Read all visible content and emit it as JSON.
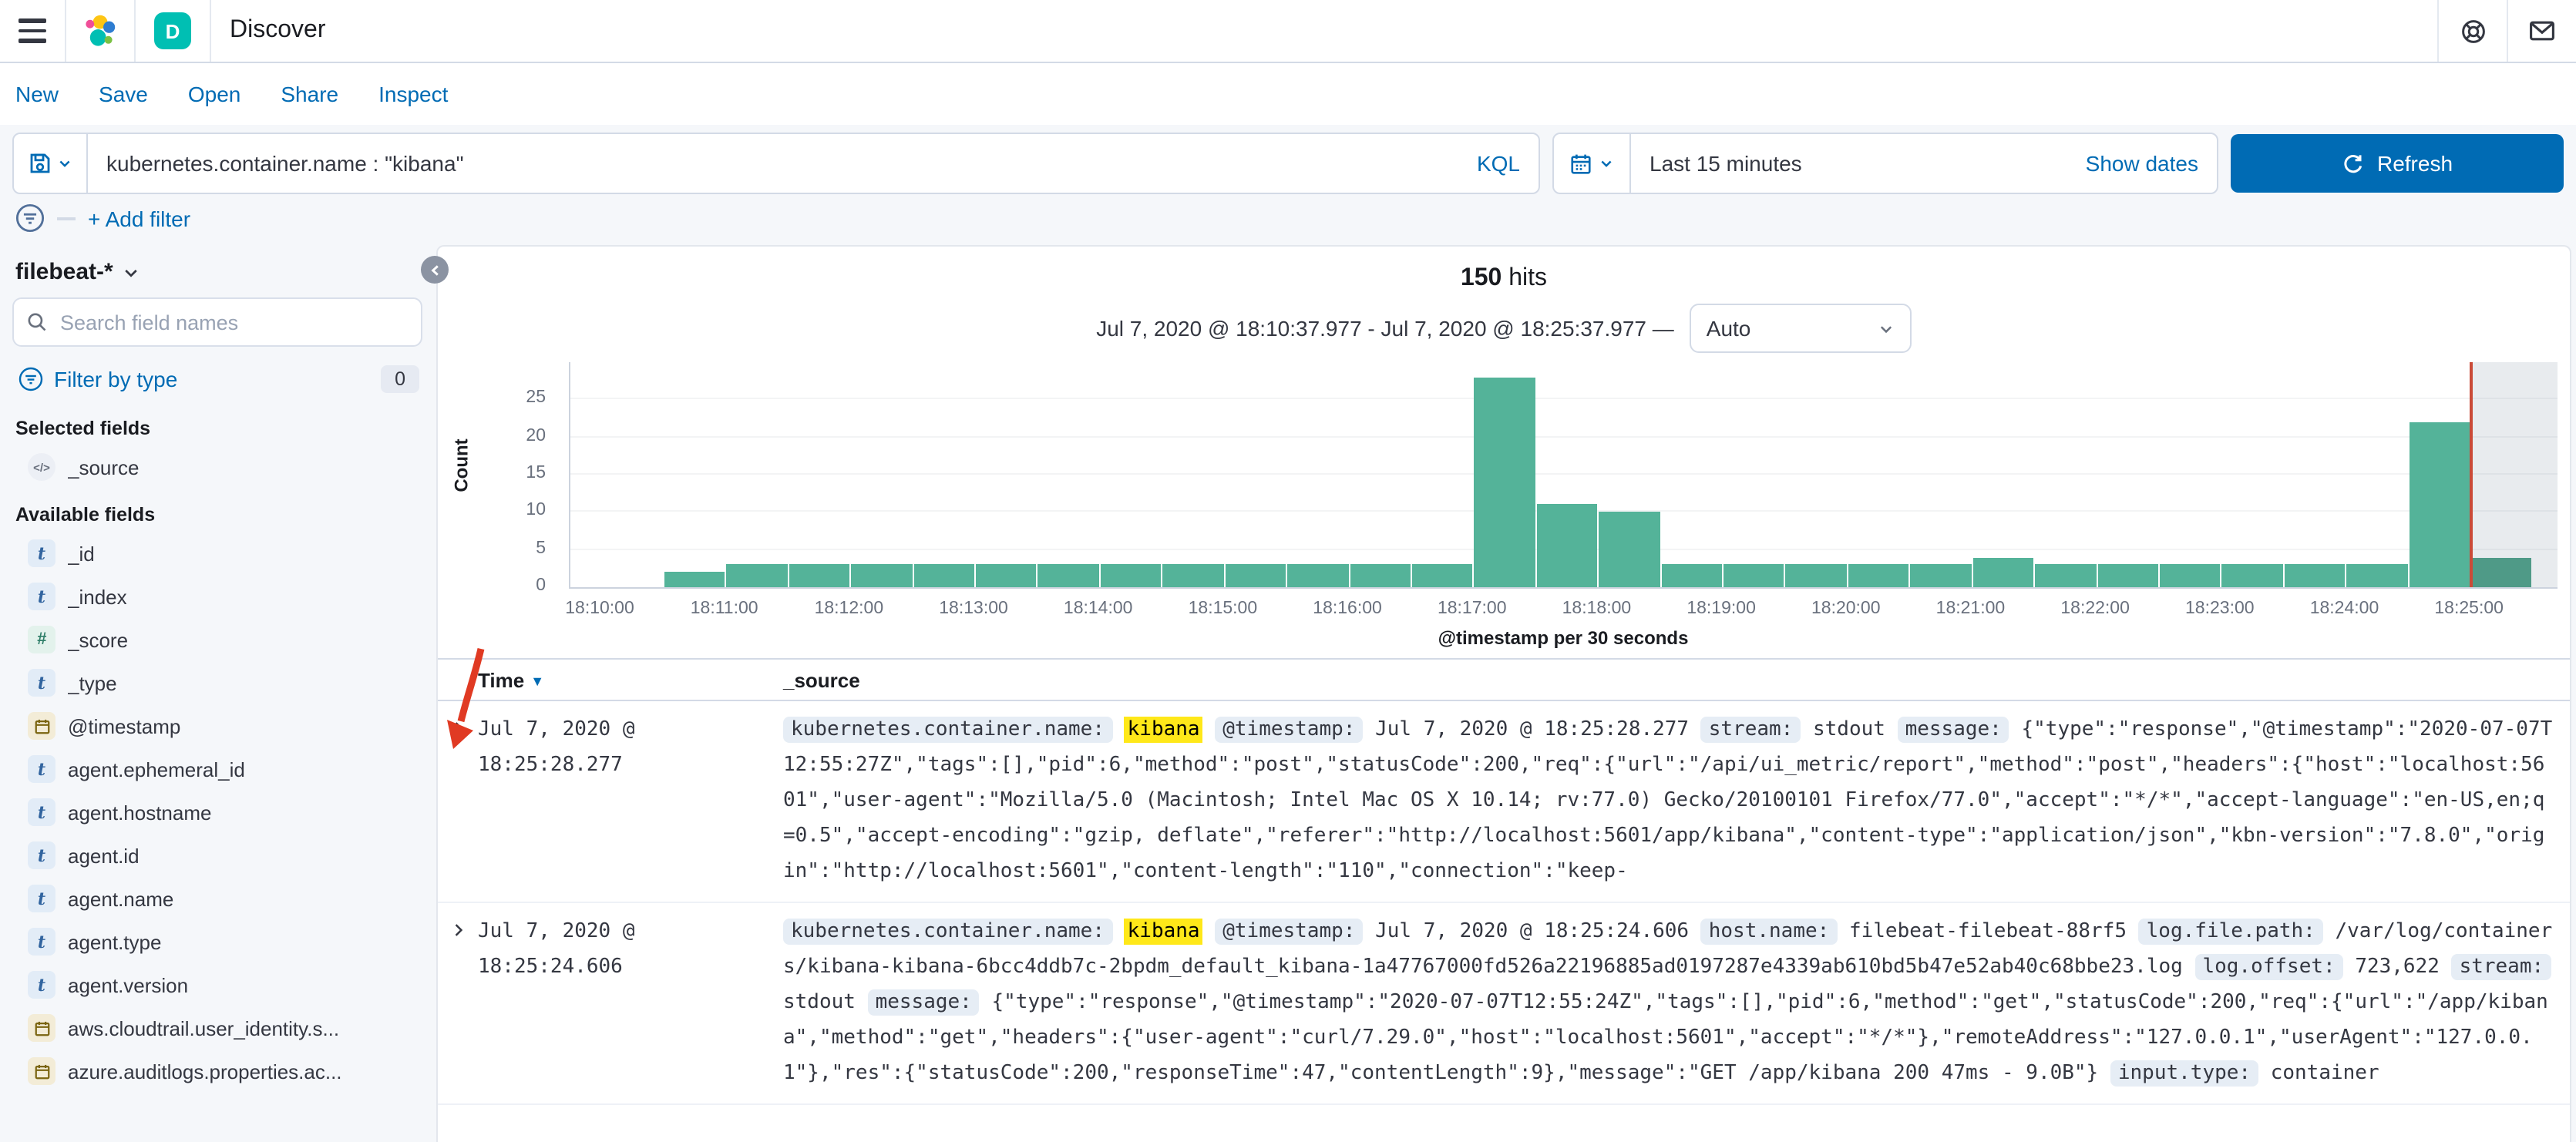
{
  "header": {
    "title": "Discover",
    "app_badge": "D"
  },
  "nav": {
    "items": [
      "New",
      "Save",
      "Open",
      "Share",
      "Inspect"
    ]
  },
  "query_bar": {
    "query": "kubernetes.container.name : \"kibana\"",
    "language_label": "KQL",
    "time_label": "Last 15 minutes",
    "show_dates_label": "Show dates",
    "refresh_label": "Refresh"
  },
  "filter_bar": {
    "add_filter_label": "+ Add filter"
  },
  "sidebar": {
    "index_pattern": "filebeat-*",
    "search_placeholder": "Search field names",
    "filter_by_type_label": "Filter by type",
    "filter_count": "0",
    "selected_heading": "Selected fields",
    "available_heading": "Available fields",
    "selected_fields": [
      {
        "name": "_source",
        "type": "source"
      }
    ],
    "available_fields": [
      {
        "name": "_id",
        "type": "string"
      },
      {
        "name": "_index",
        "type": "string"
      },
      {
        "name": "_score",
        "type": "number"
      },
      {
        "name": "_type",
        "type": "string"
      },
      {
        "name": "@timestamp",
        "type": "date"
      },
      {
        "name": "agent.ephemeral_id",
        "type": "string"
      },
      {
        "name": "agent.hostname",
        "type": "string"
      },
      {
        "name": "agent.id",
        "type": "string"
      },
      {
        "name": "agent.name",
        "type": "string"
      },
      {
        "name": "agent.type",
        "type": "string"
      },
      {
        "name": "agent.version",
        "type": "string"
      },
      {
        "name": "aws.cloudtrail.user_identity.s...",
        "type": "date"
      },
      {
        "name": "azure.auditlogs.properties.ac...",
        "type": "date"
      }
    ]
  },
  "results": {
    "hits_count": "150",
    "hits_label": "hits",
    "time_range": "Jul 7, 2020 @ 18:10:37.977 - Jul 7, 2020 @ 18:25:37.977",
    "range_separator": "—",
    "interval_value": "Auto"
  },
  "chart_data": {
    "type": "bar",
    "ylabel": "Count",
    "xlabel": "@timestamp per 30 seconds",
    "bucket_seconds": 30,
    "x_start": "18:10:00",
    "x_tick_labels": [
      "18:10:00",
      "18:11:00",
      "18:12:00",
      "18:13:00",
      "18:14:00",
      "18:15:00",
      "18:16:00",
      "18:17:00",
      "18:18:00",
      "18:19:00",
      "18:20:00",
      "18:21:00",
      "18:22:00",
      "18:23:00",
      "18:24:00",
      "18:25:00"
    ],
    "values": [
      0,
      2,
      3,
      3,
      3,
      3,
      3,
      3,
      3,
      3,
      3,
      3,
      3,
      3,
      28,
      11,
      10,
      3,
      3,
      3,
      3,
      3,
      4,
      3,
      3,
      3,
      3,
      3,
      3,
      22,
      4
    ],
    "ylim": [
      0,
      30
    ],
    "yticks": [
      0,
      5,
      10,
      15,
      20,
      25
    ],
    "bar_color": "#54b399",
    "partial_bucket_overlay": true,
    "current_time_line_color": "#ca4b38",
    "grid": false,
    "legend": false
  },
  "annotation": {
    "type": "arrow",
    "color": "#e03a23",
    "points_at": "first-row-expand-caret"
  },
  "table": {
    "columns": [
      "Time",
      "_source"
    ],
    "rows": [
      {
        "time": "Jul 7, 2020 @ 18:25:28.277",
        "tokens": [
          {
            "k": "badge",
            "v": "kubernetes.container.name:"
          },
          {
            "k": "mark",
            "v": "kibana"
          },
          {
            "k": "badge",
            "v": "@timestamp:"
          },
          {
            "k": "text",
            "v": "Jul 7, 2020 @ 18:25:28.277"
          },
          {
            "k": "badge",
            "v": "stream:"
          },
          {
            "k": "text",
            "v": "stdout"
          },
          {
            "k": "badge",
            "v": "message:"
          },
          {
            "k": "text",
            "v": "{\"type\":\"response\",\"@timestamp\":\"2020-07-07T12:55:27Z\",\"tags\":[],\"pid\":6,\"method\":\"post\",\"statusCode\":200,\"req\":{\"url\":\"/api/ui_metric/report\",\"method\":\"post\",\"headers\":{\"host\":\"localhost:5601\",\"user-agent\":\"Mozilla/5.0 (Macintosh; Intel Mac OS X 10.14; rv:77.0) Gecko/20100101 Firefox/77.0\",\"accept\":\"*/*\",\"accept-language\":\"en-US,en;q=0.5\",\"accept-encoding\":\"gzip, deflate\",\"referer\":\"http://localhost:5601/app/kibana\",\"content-type\":\"application/json\",\"kbn-version\":\"7.8.0\",\"origin\":\"http://localhost:5601\",\"content-length\":\"110\",\"connection\":\"keep-"
          }
        ]
      },
      {
        "time": "Jul 7, 2020 @ 18:25:24.606",
        "tokens": [
          {
            "k": "badge",
            "v": "kubernetes.container.name:"
          },
          {
            "k": "mark",
            "v": "kibana"
          },
          {
            "k": "badge",
            "v": "@timestamp:"
          },
          {
            "k": "text",
            "v": "Jul 7, 2020 @ 18:25:24.606"
          },
          {
            "k": "badge",
            "v": "host.name:"
          },
          {
            "k": "text",
            "v": "filebeat-filebeat-88rf5"
          },
          {
            "k": "badge",
            "v": "log.file.path:"
          },
          {
            "k": "text",
            "v": "/var/log/containers/kibana-kibana-6bcc4ddb7c-2bpdm_default_kibana-1a47767000fd526a22196885ad0197287e4339ab610bd5b47e52ab40c68bbe23.log"
          },
          {
            "k": "badge",
            "v": "log.offset:"
          },
          {
            "k": "text",
            "v": "723,622"
          },
          {
            "k": "badge",
            "v": "stream:"
          },
          {
            "k": "text",
            "v": "stdout"
          },
          {
            "k": "badge",
            "v": "message:"
          },
          {
            "k": "text",
            "v": "{\"type\":\"response\",\"@timestamp\":\"2020-07-07T12:55:24Z\",\"tags\":[],\"pid\":6,\"method\":\"get\",\"statusCode\":200,\"req\":{\"url\":\"/app/kibana\",\"method\":\"get\",\"headers\":{\"user-agent\":\"curl/7.29.0\",\"host\":\"localhost:5601\",\"accept\":\"*/*\"},\"remoteAddress\":\"127.0.0.1\",\"userAgent\":\"127.0.0.1\"},\"res\":{\"statusCode\":200,\"responseTime\":47,\"contentLength\":9},\"message\":\"GET /app/kibana 200 47ms - 9.0B\"}"
          },
          {
            "k": "badge",
            "v": "input.type:"
          },
          {
            "k": "text",
            "v": "container"
          }
        ]
      }
    ]
  }
}
